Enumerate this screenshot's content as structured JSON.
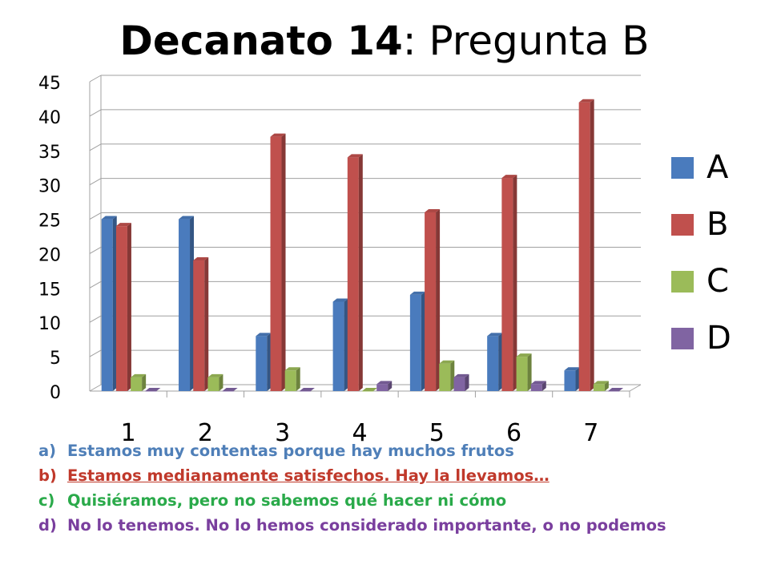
{
  "title_bold": "Decanato 14",
  "title_rest": ": Pregunta B",
  "chart_data": {
    "type": "bar",
    "title": "Decanato 14: Pregunta B",
    "categories": [
      "1",
      "2",
      "3",
      "4",
      "5",
      "6",
      "7"
    ],
    "series": [
      {
        "name": "A",
        "color": "#4a7bbd",
        "values": [
          25,
          25,
          8,
          13,
          14,
          8,
          3
        ]
      },
      {
        "name": "B",
        "color": "#c0504d",
        "values": [
          24,
          19,
          37,
          34,
          26,
          31,
          42
        ]
      },
      {
        "name": "C",
        "color": "#9bbb59",
        "values": [
          2,
          2,
          3,
          0,
          4,
          5,
          1
        ]
      },
      {
        "name": "D",
        "color": "#8064a2",
        "values": [
          0,
          0,
          0,
          1,
          2,
          1,
          0
        ]
      }
    ],
    "ylim": [
      0,
      45
    ],
    "yticks": [
      "0",
      "5",
      "10",
      "15",
      "20",
      "25",
      "30",
      "35",
      "40",
      "45"
    ],
    "grid": true,
    "legend_position": "right",
    "style": "3d-clustered-column"
  },
  "legend": [
    {
      "label": "A",
      "color": "#4a7bbd"
    },
    {
      "label": "B",
      "color": "#c0504d"
    },
    {
      "label": "C",
      "color": "#9bbb59"
    },
    {
      "label": "D",
      "color": "#8064a2"
    }
  ],
  "notes": [
    {
      "marker": "a)",
      "text": "Estamos muy contentas porque hay muchos frutos"
    },
    {
      "marker": "b)",
      "text": "Estamos medianamente satisfechos. Hay la llevamos…"
    },
    {
      "marker": "c)",
      "text": "Quisiéramos, pero no sabemos qué hacer ni cómo"
    },
    {
      "marker": "d)",
      "text": "No lo tenemos. No lo hemos considerado importante, o no podemos"
    }
  ]
}
